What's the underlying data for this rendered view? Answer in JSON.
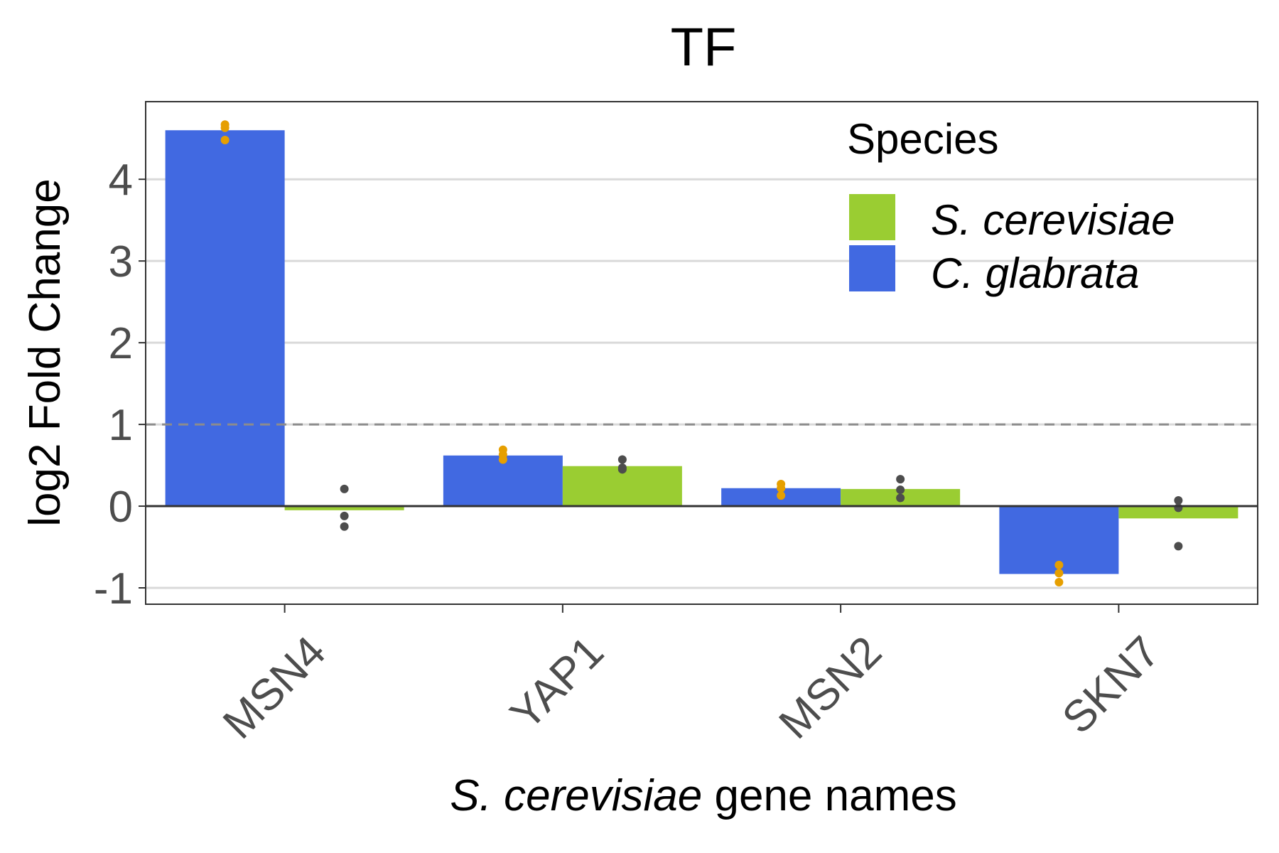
{
  "chart_data": {
    "type": "bar",
    "title": "TF",
    "xlabel_italic": "S. cerevisiae",
    "xlabel_rest": " gene names",
    "ylabel": "log2 Fold Change",
    "categories": [
      "MSN4",
      "YAP1",
      "MSN2",
      "SKN7"
    ],
    "ylim": [
      -1.2,
      4.95
    ],
    "yticks": [
      -1,
      0,
      1,
      2,
      3,
      4
    ],
    "ytick_labels": [
      "-1",
      "0",
      "1",
      "2",
      "3",
      "4"
    ],
    "reference_line": 1,
    "grid": true,
    "legend": {
      "title": "Species",
      "placement": "top-right",
      "entries": [
        {
          "label": "S. cerevisiae",
          "color": "#9acd32"
        },
        {
          "label": "C. glabrata",
          "color": "#4169e1"
        }
      ]
    },
    "series": [
      {
        "name": "C. glabrata",
        "color": "#4169e1",
        "point_color": "#e69f00",
        "values": [
          4.6,
          0.62,
          0.22,
          -0.83
        ],
        "points": [
          [
            4.48,
            4.63,
            4.67
          ],
          [
            0.57,
            0.63,
            0.69
          ],
          [
            0.13,
            0.22,
            0.27
          ],
          [
            -0.72,
            -0.82,
            -0.93
          ]
        ]
      },
      {
        "name": "S. cerevisiae",
        "color": "#9acd32",
        "point_color": "#4d4d4d",
        "values": [
          -0.05,
          0.49,
          0.21,
          -0.15
        ],
        "points": [
          [
            0.21,
            -0.12,
            -0.25
          ],
          [
            0.57,
            0.45,
            0.47
          ],
          [
            0.33,
            0.2,
            0.1
          ],
          [
            0.07,
            -0.02,
            -0.49
          ]
        ]
      }
    ]
  }
}
